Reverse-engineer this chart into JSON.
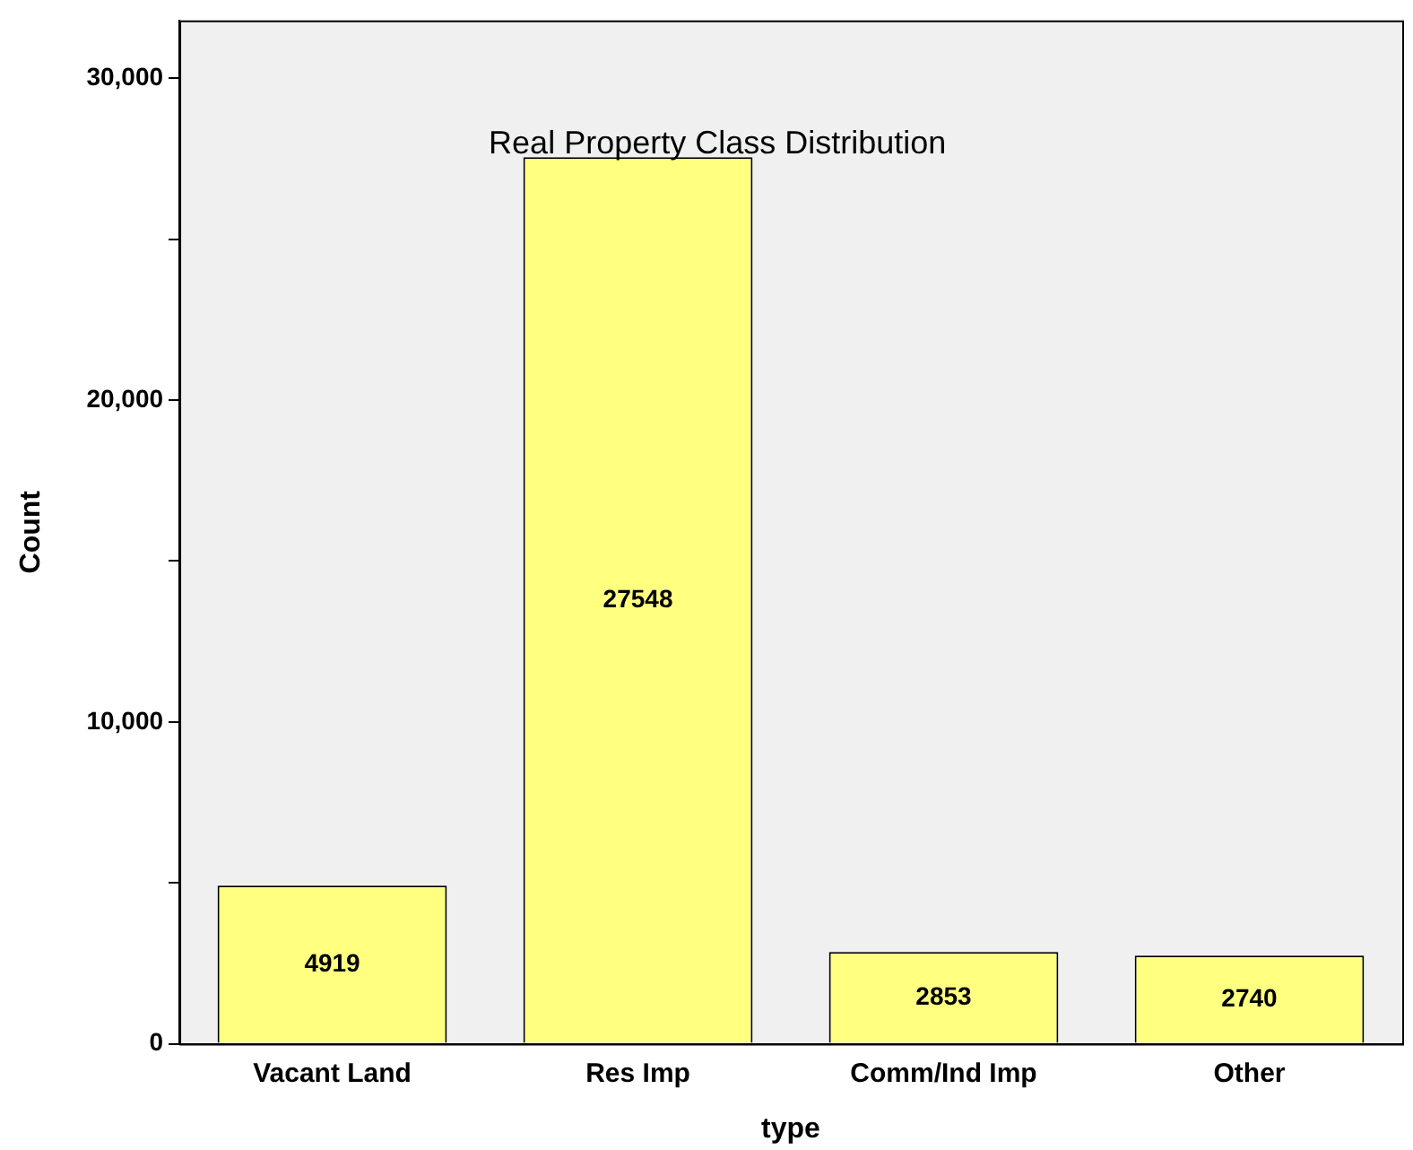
{
  "chart_data": {
    "type": "bar",
    "title": "Real Property Class Distribution",
    "xlabel": "type",
    "ylabel": "Count",
    "categories": [
      "Vacant Land",
      "Res Imp",
      "Comm/Ind Imp",
      "Other"
    ],
    "values": [
      4919,
      27548,
      2853,
      2740
    ],
    "color": "#ffff80",
    "data_labels": true,
    "grid": false,
    "legend": false,
    "ylim": [
      0,
      31800
    ],
    "yticks": [
      {
        "value": 0,
        "label": "0"
      },
      {
        "value": 5000,
        "label": null
      },
      {
        "value": 10000,
        "label": "10,000"
      },
      {
        "value": 15000,
        "label": null
      },
      {
        "value": 20000,
        "label": "20,000"
      },
      {
        "value": 25000,
        "label": null
      },
      {
        "value": 30000,
        "label": "30,000"
      }
    ]
  }
}
